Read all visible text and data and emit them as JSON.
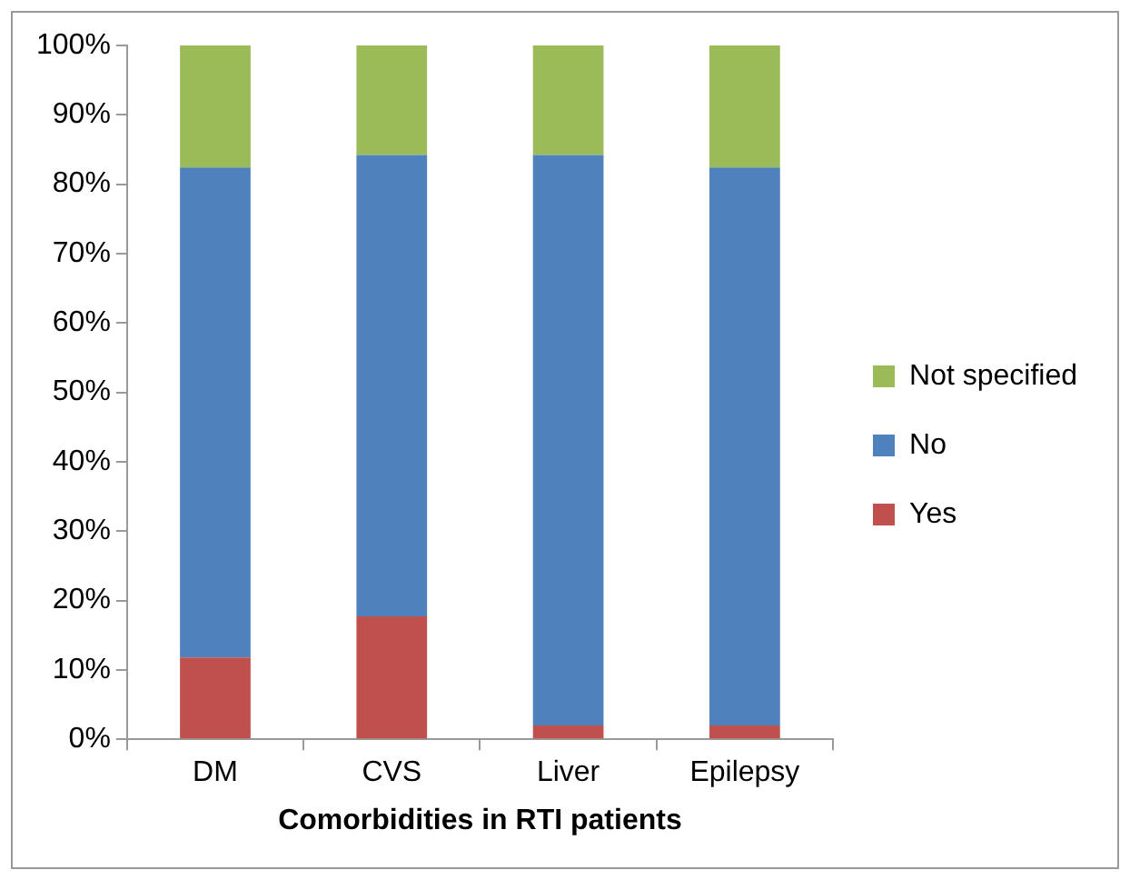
{
  "chart_data": {
    "type": "bar",
    "stacked": true,
    "xlabel": "Comorbidities in RTI patients",
    "categories": [
      "DM",
      "CVS",
      "Liver",
      "Epilepsy"
    ],
    "series": [
      {
        "name": "Yes",
        "color": "#c0504d",
        "values": [
          11.8,
          17.7,
          2.0,
          2.0
        ]
      },
      {
        "name": "No",
        "color": "#4f81bd",
        "values": [
          70.6,
          66.5,
          82.2,
          80.4
        ]
      },
      {
        "name": "Not specified",
        "color": "#9bbb59",
        "values": [
          17.6,
          15.8,
          15.8,
          17.6
        ]
      }
    ],
    "ylim": [
      0,
      100
    ],
    "yticks": [
      {
        "value": 0,
        "label": "0%"
      },
      {
        "value": 10,
        "label": "10%"
      },
      {
        "value": 20,
        "label": "20%"
      },
      {
        "value": 30,
        "label": "30%"
      },
      {
        "value": 40,
        "label": "40%"
      },
      {
        "value": 50,
        "label": "50%"
      },
      {
        "value": 60,
        "label": "60%"
      },
      {
        "value": 70,
        "label": "70%"
      },
      {
        "value": 80,
        "label": "80%"
      },
      {
        "value": 90,
        "label": "90%"
      },
      {
        "value": 100,
        "label": "100%"
      }
    ],
    "grid": false,
    "legend": "right"
  }
}
